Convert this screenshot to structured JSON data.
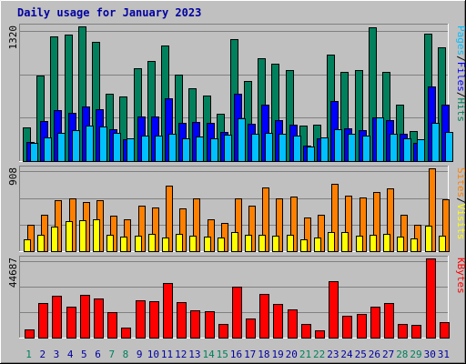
{
  "title": "Daily usage for January 2023",
  "colors": {
    "background": "#c0c0c0",
    "hits": "#00805c",
    "files": "#0000ff",
    "pages": "#00c0ff",
    "visits": "#ff8000",
    "sites": "#ffff00",
    "kbytes": "#ff0000",
    "grid": "#808080",
    "weekend_label": "#00805c",
    "weekday_label": "#0000a0",
    "title": "#0000a0"
  },
  "legends": {
    "top": [
      {
        "text": "Pages",
        "color": "#00c0ff"
      },
      {
        "text": "/",
        "color": "#000000"
      },
      {
        "text": "Files",
        "color": "#0000ff"
      },
      {
        "text": "/",
        "color": "#000000"
      },
      {
        "text": "Hits",
        "color": "#00805c"
      }
    ],
    "middle": [
      {
        "text": "Sites",
        "color": "#ff8000"
      },
      {
        "text": "/",
        "color": "#000000"
      },
      {
        "text": "Visits",
        "color": "#ffff00"
      }
    ],
    "bottom": [
      {
        "text": "KBytes",
        "color": "#ff0000"
      }
    ]
  },
  "chart_data": {
    "type": "bar",
    "title": "Daily usage for January 2023",
    "categories": [
      "1",
      "2",
      "3",
      "4",
      "5",
      "6",
      "7",
      "8",
      "9",
      "10",
      "11",
      "12",
      "13",
      "14",
      "15",
      "16",
      "17",
      "18",
      "19",
      "20",
      "21",
      "22",
      "23",
      "24",
      "25",
      "26",
      "27",
      "28",
      "29",
      "30",
      "31"
    ],
    "weekend_days": [
      "1",
      "7",
      "8",
      "14",
      "15",
      "21",
      "22",
      "28",
      "29"
    ],
    "panels": [
      {
        "id": "top",
        "ymax_label": "1320",
        "ylim": [
          0,
          1320
        ],
        "series": [
          {
            "name": "Hits",
            "values": [
              330,
              840,
              1222,
              1240,
              1320,
              1171,
              662,
              629,
              911,
              982,
              1130,
              850,
              717,
              645,
              466,
              1197,
              784,
              1007,
              950,
              891,
              345,
              358,
              1040,
              874,
              891,
              1307,
              873,
              552,
              297,
              1247,
              1111
            ]
          },
          {
            "name": "Files",
            "values": [
              190,
              393,
              498,
              475,
              538,
              506,
              315,
              214,
              441,
              441,
              619,
              377,
              385,
              374,
              283,
              657,
              368,
              556,
              398,
              358,
              151,
              226,
              587,
              324,
              305,
              432,
              401,
              267,
              177,
              731,
              553
            ]
          },
          {
            "name": "Pages",
            "values": [
              180,
              229,
              275,
              306,
              346,
              336,
              278,
              220,
              246,
              253,
              271,
              226,
              241,
              226,
              260,
              416,
              268,
              278,
              264,
              252,
              141,
              228,
              314,
              267,
              254,
              430,
              270,
              219,
              214,
              376,
              289
            ]
          }
        ]
      },
      {
        "id": "middle",
        "ymax_label": "908",
        "ylim": [
          0,
          908
        ],
        "series": [
          {
            "name": "Visits",
            "values": [
              130,
              180,
              270,
              330,
              340,
              350,
              180,
              160,
              170,
              185,
              150,
              190,
              170,
              160,
              150,
              210,
              180,
              180,
              170,
              180,
              130,
              150,
              210,
              210,
              170,
              180,
              190,
              160,
              140,
              280,
              170
            ]
          },
          {
            "name": "Sites",
            "values": [
              290,
              400,
              560,
              580,
              540,
              560,
              390,
              350,
              500,
              480,
              720,
              470,
              580,
              350,
              310,
              580,
              500,
              700,
              580,
              600,
              370,
              400,
              740,
              610,
              590,
              650,
              690,
              400,
              290,
              910,
              570
            ]
          }
        ]
      },
      {
        "id": "bottom",
        "ymax_label": "44687",
        "ylim": [
          0,
          44687
        ],
        "series": [
          {
            "name": "KBytes",
            "values": [
              4600,
              19700,
              23600,
              17300,
              24000,
              22000,
              14600,
              5800,
              21200,
              20800,
              30800,
              19900,
              15400,
              15000,
              7900,
              28800,
              10900,
              24400,
              19200,
              15700,
              7600,
              4100,
              31700,
              12100,
              13500,
              17400,
              19400,
              7900,
              7400,
              44687,
              8600
            ]
          }
        ]
      }
    ]
  }
}
